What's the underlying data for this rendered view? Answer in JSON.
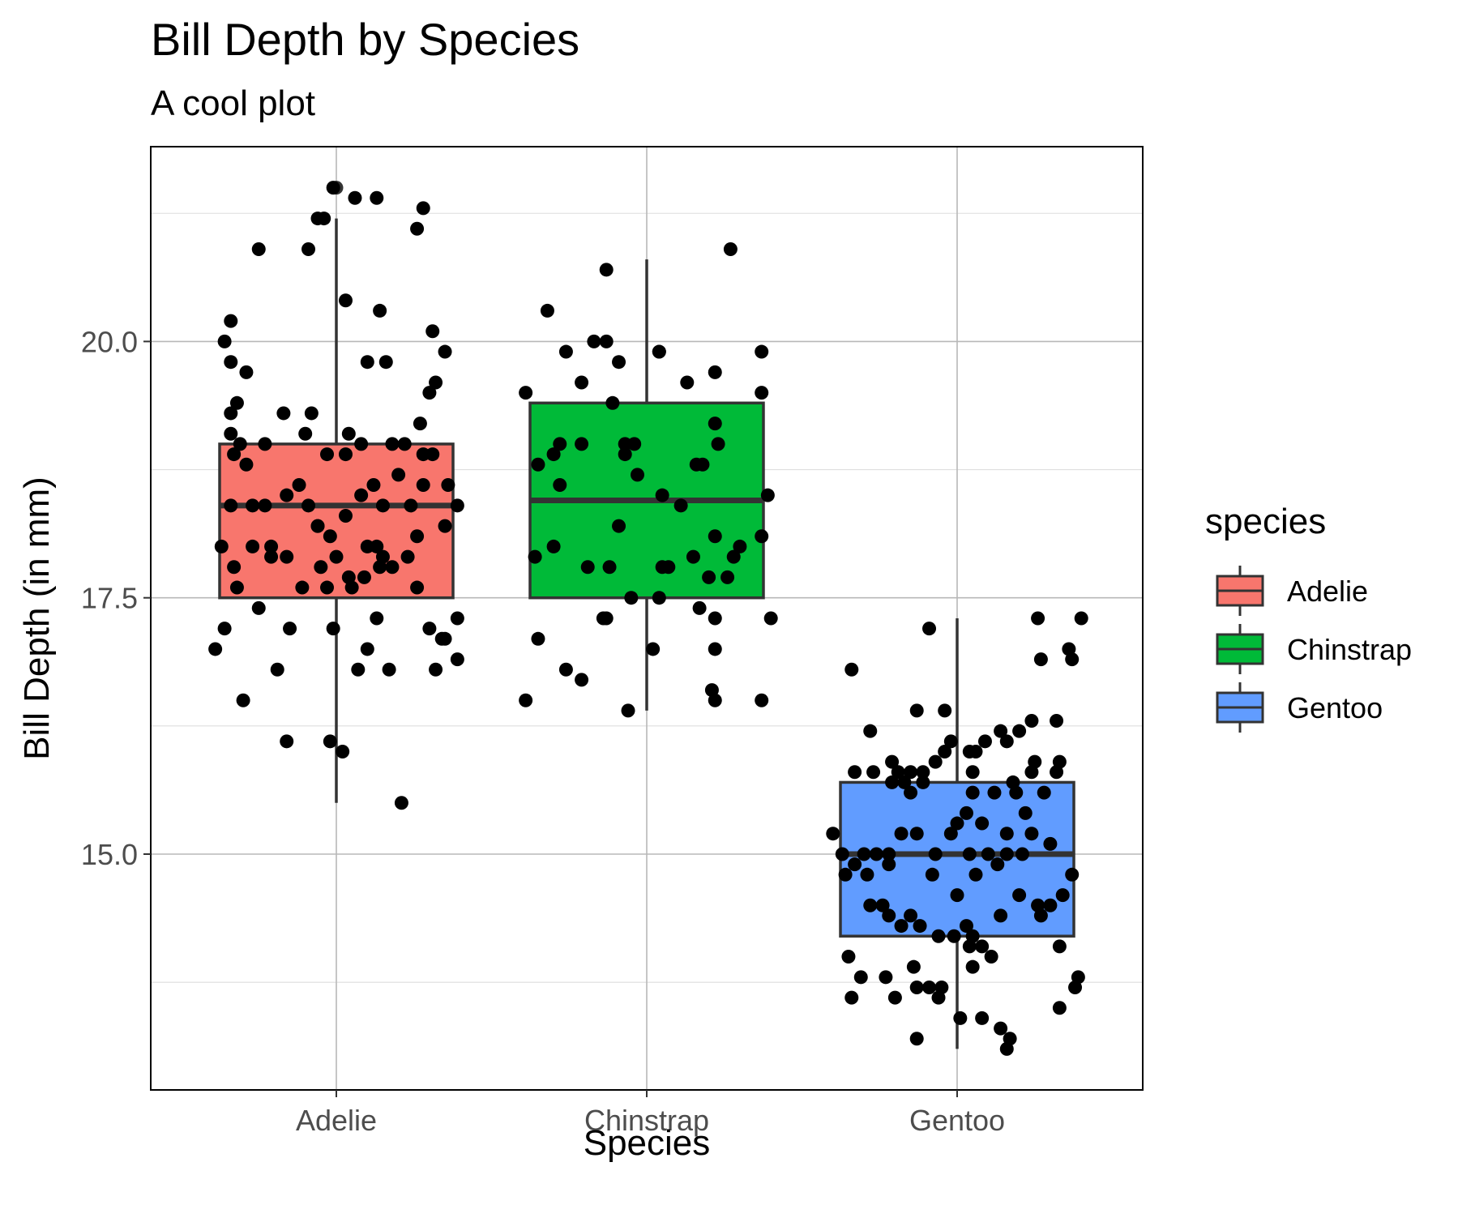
{
  "chart_data": {
    "type": "box",
    "title": "Bill Depth by Species",
    "subtitle": "A cool plot",
    "xlabel": "Species",
    "ylabel": "Bill Depth (in mm)",
    "categories": [
      "Adelie",
      "Chinstrap",
      "Gentoo"
    ],
    "y_ticks": [
      "15.0",
      "17.5",
      "20.0"
    ],
    "ylim": [
      12.7,
      21.9
    ],
    "grid": true,
    "legend": {
      "title": "species",
      "position": "right",
      "items": [
        {
          "label": "Adelie",
          "color": "#F8766D"
        },
        {
          "label": "Chinstrap",
          "color": "#00BA38"
        },
        {
          "label": "Gentoo",
          "color": "#619CFF"
        }
      ]
    },
    "boxes": [
      {
        "category": "Adelie",
        "whisker_low": 15.5,
        "q1": 17.5,
        "median": 18.4,
        "q3": 19.0,
        "whisker_high": 21.2,
        "outliers": [
          21.5
        ],
        "color": "#F8766D"
      },
      {
        "category": "Chinstrap",
        "whisker_low": 16.4,
        "q1": 17.5,
        "median": 18.45,
        "q3": 19.4,
        "whisker_high": 20.8,
        "outliers": [],
        "color": "#00BA38"
      },
      {
        "category": "Gentoo",
        "whisker_low": 13.1,
        "q1": 14.2,
        "median": 15.0,
        "q3": 15.7,
        "whisker_high": 17.3,
        "outliers": [],
        "color": "#619CFF"
      }
    ],
    "jitter_points": {
      "Adelie": [
        [
          -0.33,
          17.8
        ],
        [
          -0.36,
          17.2
        ],
        [
          -0.39,
          17.0
        ],
        [
          -0.3,
          16.5
        ],
        [
          -0.25,
          17.4
        ],
        [
          -0.21,
          18.0
        ],
        [
          -0.15,
          17.2
        ],
        [
          -0.16,
          16.1
        ],
        [
          -0.19,
          16.8
        ],
        [
          -0.02,
          16.1
        ],
        [
          0.02,
          16.0
        ],
        [
          0.21,
          15.5
        ],
        [
          0.13,
          17.3
        ],
        [
          0.07,
          16.8
        ],
        [
          0.1,
          17.0
        ],
        [
          0.05,
          17.6
        ],
        [
          -0.03,
          17.6
        ],
        [
          -0.01,
          17.2
        ],
        [
          0.17,
          16.8
        ],
        [
          0.3,
          17.2
        ],
        [
          0.35,
          17.1
        ],
        [
          0.39,
          16.9
        ],
        [
          0.34,
          17.1
        ],
        [
          0.32,
          16.8
        ],
        [
          0.39,
          17.3
        ],
        [
          0.26,
          18.1
        ],
        [
          0.35,
          18.2
        ],
        [
          0.39,
          18.4
        ],
        [
          0.36,
          18.6
        ],
        [
          0.31,
          18.9
        ],
        [
          0.27,
          19.2
        ],
        [
          0.3,
          19.5
        ],
        [
          0.35,
          19.9
        ],
        [
          0.32,
          19.6
        ],
        [
          0.16,
          19.8
        ],
        [
          0.14,
          20.3
        ],
        [
          0.1,
          19.8
        ],
        [
          0.03,
          20.4
        ],
        [
          -0.09,
          20.9
        ],
        [
          -0.25,
          20.9
        ],
        [
          -0.34,
          20.2
        ],
        [
          -0.36,
          20.0
        ],
        [
          -0.34,
          19.8
        ],
        [
          -0.34,
          19.3
        ],
        [
          -0.34,
          19.1
        ],
        [
          -0.33,
          18.9
        ],
        [
          -0.31,
          19.0
        ],
        [
          -0.29,
          18.8
        ],
        [
          -0.34,
          18.4
        ],
        [
          -0.27,
          18.4
        ],
        [
          -0.23,
          18.4
        ],
        [
          -0.16,
          18.5
        ],
        [
          -0.12,
          18.6
        ],
        [
          -0.09,
          18.4
        ],
        [
          -0.06,
          18.2
        ],
        [
          -0.02,
          18.1
        ],
        [
          0.03,
          18.3
        ],
        [
          0.08,
          18.5
        ],
        [
          0.12,
          18.6
        ],
        [
          0.15,
          18.4
        ],
        [
          0.2,
          18.7
        ],
        [
          0.24,
          18.4
        ],
        [
          0.28,
          18.6
        ],
        [
          -0.27,
          18.0
        ],
        [
          -0.21,
          17.9
        ],
        [
          -0.16,
          17.9
        ],
        [
          -0.11,
          17.6
        ],
        [
          -0.05,
          17.8
        ],
        [
          0.0,
          17.9
        ],
        [
          0.04,
          17.7
        ],
        [
          0.09,
          17.7
        ],
        [
          0.14,
          17.8
        ],
        [
          0.18,
          17.8
        ],
        [
          0.23,
          17.9
        ],
        [
          0.13,
          18.0
        ],
        [
          -0.06,
          18.2
        ],
        [
          0.1,
          18.0
        ],
        [
          0.26,
          17.6
        ],
        [
          0.15,
          17.9
        ],
        [
          -0.32,
          19.4
        ],
        [
          -0.17,
          19.3
        ],
        [
          -0.1,
          19.1
        ],
        [
          -0.08,
          19.3
        ],
        [
          0.04,
          19.1
        ],
        [
          0.08,
          19.0
        ],
        [
          0.18,
          19.0
        ],
        [
          0.22,
          19.0
        ],
        [
          0.28,
          18.9
        ],
        [
          0.03,
          18.9
        ],
        [
          -0.03,
          18.9
        ],
        [
          -0.37,
          18.0
        ],
        [
          -0.32,
          17.6
        ],
        [
          -0.23,
          19.0
        ],
        [
          -0.29,
          19.7
        ],
        [
          0.31,
          20.1
        ],
        [
          -0.04,
          21.2
        ],
        [
          -0.06,
          21.2
        ],
        [
          0.13,
          21.4
        ],
        [
          0.28,
          21.3
        ],
        [
          0.26,
          21.1
        ],
        [
          0.06,
          21.4
        ],
        [
          -0.01,
          21.5
        ]
      ],
      "Chinstrap": [
        [
          -0.39,
          16.5
        ],
        [
          -0.35,
          17.1
        ],
        [
          -0.26,
          16.8
        ],
        [
          -0.21,
          16.7
        ],
        [
          -0.14,
          17.3
        ],
        [
          -0.13,
          17.3
        ],
        [
          -0.06,
          16.4
        ],
        [
          0.02,
          17.0
        ],
        [
          0.17,
          17.4
        ],
        [
          0.22,
          17.3
        ],
        [
          0.22,
          17.0
        ],
        [
          0.21,
          16.6
        ],
        [
          0.22,
          16.5
        ],
        [
          0.37,
          16.5
        ],
        [
          0.4,
          17.3
        ],
        [
          -0.39,
          19.5
        ],
        [
          -0.32,
          20.3
        ],
        [
          -0.26,
          19.9
        ],
        [
          -0.21,
          19.6
        ],
        [
          -0.17,
          20.0
        ],
        [
          -0.13,
          20.0
        ],
        [
          -0.09,
          19.8
        ],
        [
          -0.13,
          20.7
        ],
        [
          0.04,
          19.9
        ],
        [
          0.13,
          19.6
        ],
        [
          0.22,
          19.7
        ],
        [
          0.27,
          20.9
        ],
        [
          0.37,
          19.9
        ],
        [
          0.37,
          19.5
        ],
        [
          -0.35,
          18.8
        ],
        [
          -0.3,
          18.9
        ],
        [
          -0.28,
          19.0
        ],
        [
          -0.28,
          18.6
        ],
        [
          -0.21,
          19.0
        ],
        [
          -0.07,
          19.0
        ],
        [
          -0.04,
          19.0
        ],
        [
          -0.11,
          19.4
        ],
        [
          0.16,
          18.8
        ],
        [
          0.18,
          18.8
        ],
        [
          0.22,
          19.2
        ],
        [
          0.23,
          19.0
        ],
        [
          0.39,
          18.5
        ],
        [
          0.37,
          18.1
        ],
        [
          0.3,
          18.0
        ],
        [
          0.22,
          18.1
        ],
        [
          0.15,
          17.9
        ],
        [
          0.2,
          17.7
        ],
        [
          0.26,
          17.7
        ],
        [
          0.28,
          17.9
        ],
        [
          -0.36,
          17.9
        ],
        [
          -0.3,
          18.0
        ],
        [
          -0.19,
          17.8
        ],
        [
          -0.12,
          17.8
        ],
        [
          -0.05,
          17.5
        ],
        [
          0.04,
          17.5
        ],
        [
          0.05,
          17.8
        ],
        [
          0.07,
          17.8
        ],
        [
          -0.09,
          18.2
        ],
        [
          0.05,
          18.5
        ],
        [
          0.11,
          18.4
        ],
        [
          -0.07,
          18.9
        ],
        [
          -0.03,
          18.7
        ],
        [
          0.04,
          19.9
        ]
      ],
      "Gentoo": [
        [
          -0.4,
          15.2
        ],
        [
          -0.37,
          15.0
        ],
        [
          -0.36,
          14.8
        ],
        [
          -0.3,
          15.0
        ],
        [
          -0.29,
          14.8
        ],
        [
          -0.26,
          15.0
        ],
        [
          -0.22,
          15.0
        ],
        [
          -0.18,
          15.2
        ],
        [
          -0.13,
          15.2
        ],
        [
          -0.07,
          15.0
        ],
        [
          -0.02,
          15.2
        ],
        [
          0.04,
          15.0
        ],
        [
          0.1,
          15.0
        ],
        [
          0.16,
          15.0
        ],
        [
          0.24,
          15.2
        ],
        [
          -0.28,
          14.5
        ],
        [
          -0.24,
          14.5
        ],
        [
          -0.22,
          14.4
        ],
        [
          -0.18,
          14.3
        ],
        [
          -0.15,
          14.4
        ],
        [
          -0.12,
          14.3
        ],
        [
          -0.06,
          14.2
        ],
        [
          -0.01,
          14.2
        ],
        [
          0.05,
          14.2
        ],
        [
          0.08,
          14.1
        ],
        [
          -0.35,
          14.0
        ],
        [
          -0.31,
          13.8
        ],
        [
          -0.23,
          13.8
        ],
        [
          -0.14,
          13.9
        ],
        [
          -0.09,
          13.7
        ],
        [
          -0.06,
          13.6
        ],
        [
          0.01,
          13.4
        ],
        [
          0.08,
          13.4
        ],
        [
          0.14,
          13.3
        ],
        [
          0.16,
          13.1
        ],
        [
          0.17,
          13.2
        ],
        [
          -0.13,
          13.2
        ],
        [
          -0.34,
          13.6
        ],
        [
          -0.2,
          13.6
        ],
        [
          -0.13,
          13.7
        ],
        [
          -0.05,
          13.7
        ],
        [
          0.05,
          13.9
        ],
        [
          0.04,
          14.1
        ],
        [
          0.03,
          14.3
        ],
        [
          0.11,
          14.0
        ],
        [
          0.14,
          14.4
        ],
        [
          0.2,
          14.6
        ],
        [
          0.26,
          14.5
        ],
        [
          0.3,
          14.5
        ],
        [
          0.34,
          14.6
        ],
        [
          0.37,
          14.8
        ],
        [
          0.33,
          14.1
        ],
        [
          0.27,
          14.4
        ],
        [
          0.38,
          13.7
        ],
        [
          0.39,
          13.8
        ],
        [
          0.33,
          13.5
        ],
        [
          -0.33,
          15.8
        ],
        [
          -0.27,
          15.8
        ],
        [
          -0.21,
          15.7
        ],
        [
          -0.19,
          15.8
        ],
        [
          -0.17,
          15.7
        ],
        [
          -0.15,
          15.6
        ],
        [
          -0.11,
          15.8
        ],
        [
          -0.07,
          15.9
        ],
        [
          -0.04,
          16.0
        ],
        [
          -0.02,
          16.1
        ],
        [
          0.04,
          16.0
        ],
        [
          0.06,
          16.0
        ],
        [
          0.09,
          16.1
        ],
        [
          0.14,
          16.2
        ],
        [
          0.16,
          16.1
        ],
        [
          0.2,
          16.2
        ],
        [
          0.24,
          16.3
        ],
        [
          0.25,
          15.9
        ],
        [
          0.24,
          15.8
        ],
        [
          0.32,
          15.8
        ],
        [
          0.33,
          15.9
        ],
        [
          0.28,
          15.6
        ],
        [
          0.18,
          15.7
        ],
        [
          0.05,
          15.6
        ],
        [
          0.05,
          15.8
        ],
        [
          0.12,
          15.6
        ],
        [
          -0.28,
          16.2
        ],
        [
          -0.21,
          15.9
        ],
        [
          -0.15,
          15.8
        ],
        [
          -0.04,
          16.4
        ],
        [
          -0.11,
          15.7
        ],
        [
          0.0,
          15.3
        ],
        [
          0.03,
          15.4
        ],
        [
          0.19,
          15.6
        ],
        [
          0.08,
          15.3
        ],
        [
          0.16,
          15.2
        ],
        [
          -0.34,
          16.8
        ],
        [
          -0.13,
          16.4
        ],
        [
          0.32,
          16.3
        ],
        [
          0.27,
          16.9
        ],
        [
          0.37,
          16.9
        ],
        [
          0.4,
          17.3
        ],
        [
          0.26,
          17.3
        ],
        [
          0.36,
          17.0
        ],
        [
          -0.09,
          17.2
        ],
        [
          0.21,
          15.0
        ],
        [
          0.13,
          14.9
        ],
        [
          0.06,
          14.8
        ],
        [
          -0.08,
          14.8
        ],
        [
          0.0,
          14.6
        ],
        [
          0.22,
          15.4
        ],
        [
          0.3,
          15.1
        ],
        [
          -0.33,
          14.9
        ],
        [
          -0.22,
          14.9
        ]
      ]
    }
  }
}
